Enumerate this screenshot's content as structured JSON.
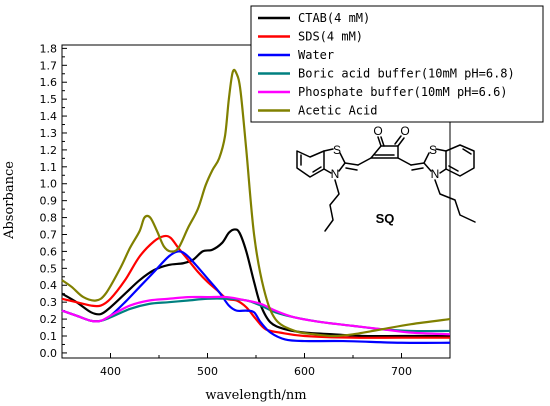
{
  "chart_data": {
    "type": "line",
    "xlabel": "wavelength/nm",
    "ylabel": "Absorbance",
    "xlim": [
      350,
      750
    ],
    "ylim": [
      -0.03,
      1.82
    ],
    "xticks": [
      400,
      500,
      600,
      700
    ],
    "yticks": [
      0.0,
      0.1,
      0.2,
      0.3,
      0.4,
      0.5,
      0.6,
      0.7,
      0.8,
      0.9,
      1.0,
      1.1,
      1.2,
      1.3,
      1.4,
      1.5,
      1.6,
      1.7,
      1.8
    ],
    "grid": false,
    "legend_position": "top-right",
    "series": [
      {
        "name": "CTAB(4 mM)",
        "color": "#000000",
        "points": [
          [
            350,
            0.35
          ],
          [
            365,
            0.3
          ],
          [
            380,
            0.24
          ],
          [
            390,
            0.23
          ],
          [
            400,
            0.27
          ],
          [
            415,
            0.35
          ],
          [
            430,
            0.43
          ],
          [
            445,
            0.49
          ],
          [
            460,
            0.52
          ],
          [
            475,
            0.53
          ],
          [
            485,
            0.55
          ],
          [
            495,
            0.6
          ],
          [
            505,
            0.61
          ],
          [
            515,
            0.65
          ],
          [
            522,
            0.71
          ],
          [
            528,
            0.73
          ],
          [
            533,
            0.71
          ],
          [
            540,
            0.6
          ],
          [
            548,
            0.42
          ],
          [
            555,
            0.28
          ],
          [
            565,
            0.18
          ],
          [
            580,
            0.14
          ],
          [
            600,
            0.12
          ],
          [
            630,
            0.11
          ],
          [
            660,
            0.1
          ],
          [
            700,
            0.1
          ],
          [
            750,
            0.1
          ]
        ]
      },
      {
        "name": "SDS(4 mM)",
        "color": "#ff0000",
        "points": [
          [
            350,
            0.32
          ],
          [
            365,
            0.3
          ],
          [
            380,
            0.28
          ],
          [
            390,
            0.28
          ],
          [
            400,
            0.32
          ],
          [
            415,
            0.43
          ],
          [
            430,
            0.57
          ],
          [
            445,
            0.66
          ],
          [
            455,
            0.69
          ],
          [
            462,
            0.68
          ],
          [
            470,
            0.62
          ],
          [
            480,
            0.55
          ],
          [
            490,
            0.48
          ],
          [
            500,
            0.42
          ],
          [
            510,
            0.37
          ],
          [
            520,
            0.32
          ],
          [
            530,
            0.31
          ],
          [
            540,
            0.27
          ],
          [
            550,
            0.2
          ],
          [
            560,
            0.14
          ],
          [
            575,
            0.12
          ],
          [
            600,
            0.1
          ],
          [
            650,
            0.09
          ],
          [
            700,
            0.09
          ],
          [
            750,
            0.09
          ]
        ]
      },
      {
        "name": "Water",
        "color": "#0000ff",
        "points": [
          [
            350,
            0.25
          ],
          [
            365,
            0.22
          ],
          [
            380,
            0.19
          ],
          [
            390,
            0.19
          ],
          [
            400,
            0.22
          ],
          [
            415,
            0.3
          ],
          [
            430,
            0.39
          ],
          [
            445,
            0.48
          ],
          [
            460,
            0.57
          ],
          [
            470,
            0.6
          ],
          [
            478,
            0.58
          ],
          [
            488,
            0.52
          ],
          [
            500,
            0.44
          ],
          [
            512,
            0.36
          ],
          [
            522,
            0.28
          ],
          [
            530,
            0.25
          ],
          [
            540,
            0.25
          ],
          [
            548,
            0.24
          ],
          [
            555,
            0.18
          ],
          [
            565,
            0.12
          ],
          [
            580,
            0.08
          ],
          [
            600,
            0.07
          ],
          [
            640,
            0.07
          ],
          [
            700,
            0.06
          ],
          [
            750,
            0.06
          ]
        ]
      },
      {
        "name": "Boric acid buffer(10mM pH=6.8)",
        "color": "#008080",
        "points": [
          [
            350,
            0.25
          ],
          [
            365,
            0.22
          ],
          [
            380,
            0.19
          ],
          [
            390,
            0.19
          ],
          [
            400,
            0.21
          ],
          [
            420,
            0.26
          ],
          [
            440,
            0.29
          ],
          [
            460,
            0.3
          ],
          [
            480,
            0.31
          ],
          [
            500,
            0.32
          ],
          [
            520,
            0.32
          ],
          [
            540,
            0.31
          ],
          [
            555,
            0.28
          ],
          [
            570,
            0.24
          ],
          [
            590,
            0.21
          ],
          [
            620,
            0.18
          ],
          [
            650,
            0.16
          ],
          [
            680,
            0.14
          ],
          [
            710,
            0.13
          ],
          [
            750,
            0.13
          ]
        ]
      },
      {
        "name": "Phosphate buffer(10mM pH=6.6)",
        "color": "#ff00ff",
        "points": [
          [
            350,
            0.25
          ],
          [
            365,
            0.22
          ],
          [
            380,
            0.19
          ],
          [
            390,
            0.19
          ],
          [
            400,
            0.22
          ],
          [
            420,
            0.28
          ],
          [
            440,
            0.31
          ],
          [
            460,
            0.32
          ],
          [
            480,
            0.33
          ],
          [
            500,
            0.33
          ],
          [
            520,
            0.33
          ],
          [
            540,
            0.31
          ],
          [
            555,
            0.29
          ],
          [
            570,
            0.25
          ],
          [
            590,
            0.21
          ],
          [
            620,
            0.18
          ],
          [
            650,
            0.16
          ],
          [
            680,
            0.14
          ],
          [
            710,
            0.12
          ],
          [
            750,
            0.11
          ]
        ]
      },
      {
        "name": "Acetic Acid",
        "color": "#808000",
        "points": [
          [
            350,
            0.43
          ],
          [
            360,
            0.39
          ],
          [
            372,
            0.33
          ],
          [
            385,
            0.31
          ],
          [
            395,
            0.35
          ],
          [
            410,
            0.5
          ],
          [
            420,
            0.62
          ],
          [
            430,
            0.72
          ],
          [
            435,
            0.8
          ],
          [
            441,
            0.8
          ],
          [
            448,
            0.72
          ],
          [
            455,
            0.63
          ],
          [
            462,
            0.6
          ],
          [
            470,
            0.62
          ],
          [
            480,
            0.74
          ],
          [
            490,
            0.85
          ],
          [
            498,
            0.99
          ],
          [
            505,
            1.08
          ],
          [
            512,
            1.15
          ],
          [
            518,
            1.28
          ],
          [
            522,
            1.5
          ],
          [
            526,
            1.66
          ],
          [
            530,
            1.65
          ],
          [
            534,
            1.55
          ],
          [
            540,
            1.2
          ],
          [
            548,
            0.7
          ],
          [
            558,
            0.38
          ],
          [
            570,
            0.2
          ],
          [
            590,
            0.13
          ],
          [
            610,
            0.11
          ],
          [
            630,
            0.1
          ],
          [
            650,
            0.11
          ],
          [
            680,
            0.14
          ],
          [
            710,
            0.17
          ],
          [
            750,
            0.2
          ]
        ]
      }
    ]
  },
  "molecule": {
    "label": "SQ",
    "atoms": {
      "oxygen": "O",
      "sulfur": "S",
      "nitrogen": "N"
    }
  }
}
